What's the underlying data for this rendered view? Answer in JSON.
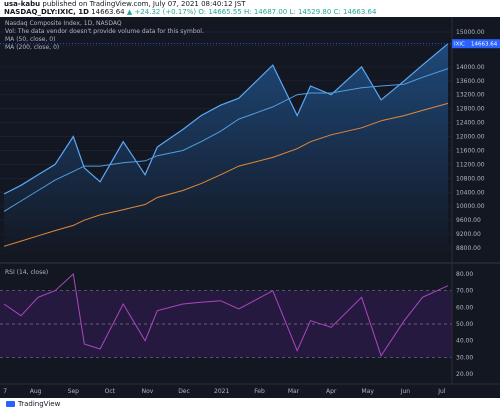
{
  "header": {
    "publisher": "usa-kabu",
    "published_text": "published on TradingView.com, July 07, 2021 08:40:12 JST",
    "symbol": "NASDAQ_DLY:IXIC, 1D",
    "price": "14663.64",
    "change": "▲ +24.32 (+0.17%)",
    "ohlc": "O: 14665.55  H: 14687.00  L: 14529.80  C: 14663.64"
  },
  "legend": {
    "title": "Nasdaq Composite Index, 1D, NASDAQ",
    "vol_note": "Vol: The data vendor doesn't provide volume data for this symbol.",
    "ma50": "MA (50, close, 0)",
    "ma200": "MA (200, close, 0)",
    "rsi": "RSI (14, close)"
  },
  "price_badge": {
    "label": "IXIC",
    "value": "14663.64"
  },
  "price_axis": [
    "15000.00",
    "14600.00",
    "14000.00",
    "13600.00",
    "13200.00",
    "12800.00",
    "12400.00",
    "12000.00",
    "11600.00",
    "11200.00",
    "10800.00",
    "10400.00",
    "10000.00",
    "9600.00",
    "9200.00",
    "8800.00"
  ],
  "rsi_axis": [
    "80.00",
    "70.00",
    "60.00",
    "50.00",
    "40.00",
    "30.00",
    "20.00"
  ],
  "time_axis": [
    "7",
    "Aug",
    "Sep",
    "Oct",
    "Nov",
    "Dec",
    "2021",
    "Feb",
    "Mar",
    "Apr",
    "May",
    "Jun",
    "Jul"
  ],
  "footer": {
    "brand": "TradingView"
  },
  "colors": {
    "background": "#131722",
    "price_line": "#5aa9f8",
    "ma50": "#4f9fdd",
    "ma200": "#e2883a",
    "rsi_line": "#ab47bc",
    "rsi_band": "#2e1b4b"
  },
  "chart_data": [
    {
      "type": "area",
      "title": "Nasdaq Composite Index, 1D, NASDAQ",
      "x": [
        "2020-07-06",
        "2020-07-20",
        "2020-08-03",
        "2020-08-17",
        "2020-09-01",
        "2020-09-10",
        "2020-09-23",
        "2020-10-12",
        "2020-10-30",
        "2020-11-09",
        "2020-11-30",
        "2020-12-15",
        "2020-12-31",
        "2021-01-15",
        "2021-02-12",
        "2021-03-04",
        "2021-03-15",
        "2021-04-01",
        "2021-04-26",
        "2021-05-12",
        "2021-05-31",
        "2021-06-15",
        "2021-07-06"
      ],
      "series": [
        {
          "name": "IXIC",
          "values": [
            10350,
            10600,
            10900,
            11200,
            12000,
            11100,
            10700,
            11850,
            10900,
            11700,
            12200,
            12600,
            12900,
            13100,
            14050,
            12600,
            13450,
            13200,
            14000,
            13050,
            13600,
            14050,
            14663.64
          ]
        },
        {
          "name": "MA (50, close, 0)",
          "values": [
            9850,
            10150,
            10450,
            10750,
            11000,
            11150,
            11150,
            11250,
            11300,
            11450,
            11600,
            11850,
            12150,
            12500,
            12850,
            13200,
            13250,
            13250,
            13400,
            13450,
            13500,
            13700,
            13950
          ]
        },
        {
          "name": "MA (200, close, 0)",
          "values": [
            8850,
            9000,
            9150,
            9300,
            9450,
            9600,
            9750,
            9900,
            10050,
            10250,
            10450,
            10650,
            10900,
            11150,
            11400,
            11650,
            11850,
            12050,
            12250,
            12450,
            12600,
            12750,
            12950
          ]
        }
      ],
      "ylim": [
        8600,
        15200
      ],
      "last_value": 14663.64
    },
    {
      "type": "line",
      "title": "RSI (14, close)",
      "x": [
        "2020-07-06",
        "2020-07-20",
        "2020-08-03",
        "2020-08-17",
        "2020-09-01",
        "2020-09-10",
        "2020-09-23",
        "2020-10-12",
        "2020-10-30",
        "2020-11-09",
        "2020-11-30",
        "2020-12-15",
        "2020-12-31",
        "2021-01-15",
        "2021-02-12",
        "2021-03-04",
        "2021-03-15",
        "2021-04-01",
        "2021-04-26",
        "2021-05-12",
        "2021-05-31",
        "2021-06-15",
        "2021-07-06"
      ],
      "series": [
        {
          "name": "RSI (14, close)",
          "values": [
            62,
            55,
            66,
            70,
            80,
            38,
            35,
            62,
            40,
            58,
            62,
            63,
            64,
            59,
            70,
            34,
            52,
            48,
            66,
            31,
            52,
            66,
            73
          ]
        }
      ],
      "reference_lines": [
        70,
        50,
        30
      ],
      "ylim": [
        17,
        83
      ]
    }
  ]
}
